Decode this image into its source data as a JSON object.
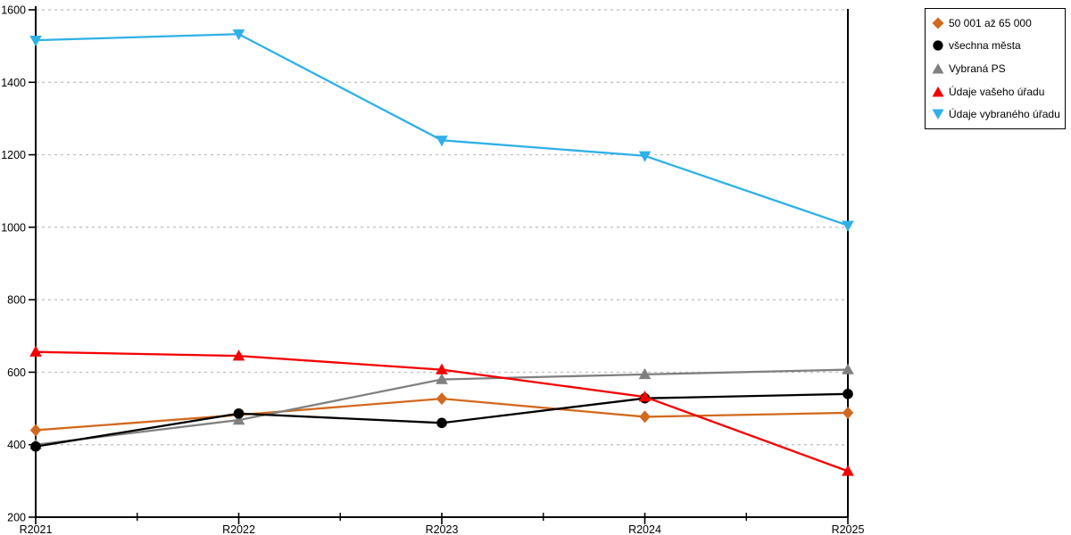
{
  "chart_data": {
    "type": "line",
    "title": "",
    "xlabel": "",
    "ylabel": "",
    "categories": [
      "R2021",
      "R2022",
      "R2023",
      "R2024",
      "R2025"
    ],
    "ylim": [
      200,
      1600
    ],
    "yticks": [
      200,
      400,
      600,
      800,
      1000,
      1200,
      1400,
      1600
    ],
    "grid": "horizontal dashed gridlines at each y tick",
    "legend_position": "outside top-right",
    "series": [
      {
        "name": "50 001 až 65 000",
        "color": "#D2691E",
        "marker": "diamond",
        "values": [
          440,
          482,
          527,
          477,
          488
        ]
      },
      {
        "name": "všechna města",
        "color": "#000000",
        "marker": "circle",
        "values": [
          395,
          486,
          460,
          528,
          540
        ]
      },
      {
        "name": "Vybraná PS",
        "color": "#808080",
        "marker": "triangle-up",
        "values": [
          400,
          468,
          580,
          594,
          607
        ]
      },
      {
        "name": "Údaje vašeho úřadu",
        "color": "#F50000",
        "marker": "triangle-up",
        "values": [
          656,
          645,
          607,
          532,
          327
        ]
      },
      {
        "name": "Údaje vybraného úřadu",
        "color": "#2FB0E8",
        "marker": "triangle-down",
        "values": [
          1516,
          1533,
          1240,
          1197,
          1005
        ]
      }
    ],
    "colors": {
      "axis": "#000000",
      "gridline": "#bcbcbc",
      "background": "#ffffff"
    }
  }
}
